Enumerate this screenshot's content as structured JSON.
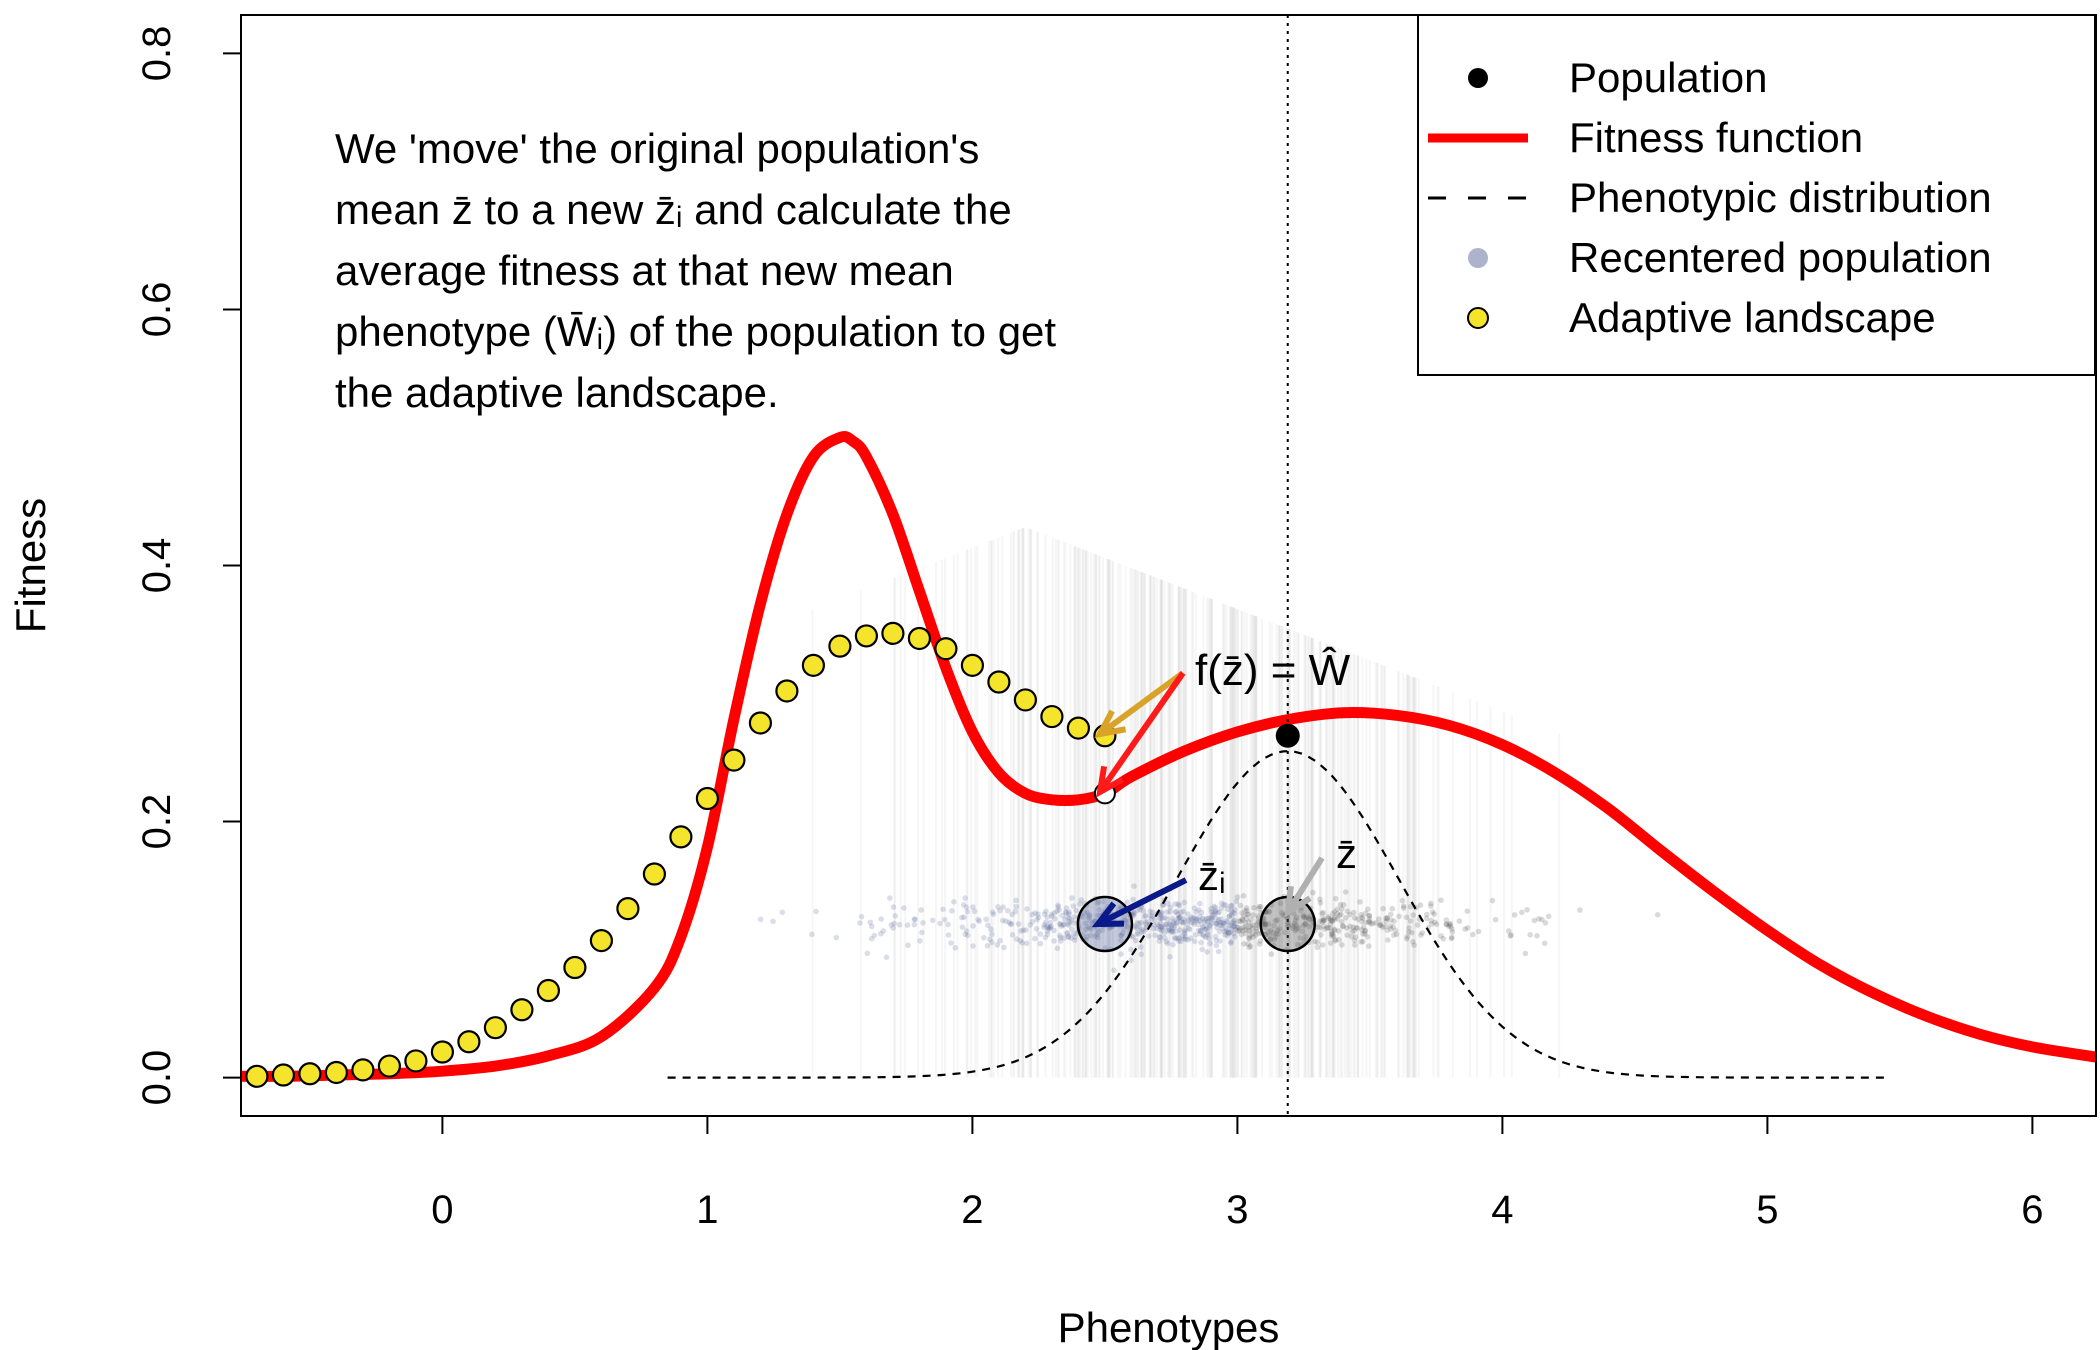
{
  "chart_data": {
    "type": "line",
    "xlabel": "Phenotypes",
    "ylabel": "Fitness",
    "xlim": [
      -0.76,
      6.24
    ],
    "ylim": [
      -0.03,
      0.83
    ],
    "x_ticks": [
      0,
      1,
      2,
      3,
      4,
      5,
      6
    ],
    "y_ticks": [
      0.0,
      0.2,
      0.4,
      0.6,
      0.8
    ],
    "x_tick_labels": [
      "0",
      "1",
      "2",
      "3",
      "4",
      "5",
      "6"
    ],
    "y_tick_labels": [
      "0.0",
      "0.2",
      "0.4",
      "0.6",
      "0.8"
    ],
    "grid": false,
    "legend_position": "top-right",
    "legend": [
      {
        "label": "Population",
        "symbol": "point",
        "color": "#000000"
      },
      {
        "label": "Fitness function",
        "symbol": "line",
        "color": "#ff0000"
      },
      {
        "label": "Phenotypic distribution",
        "symbol": "dashed-line",
        "color": "#000000"
      },
      {
        "label": "Recentered population",
        "symbol": "point",
        "color": "#8a93b6"
      },
      {
        "label": "Adaptive landscape",
        "symbol": "point",
        "color": "#f5e42c"
      }
    ],
    "annotation_lines": [
      "We 'move' the original population's",
      "mean z̄ to a new z̄ᵢ and calculate the",
      "average fitness at that new mean",
      "phenotype (W̄ᵢ) of the population to get",
      "the adaptive landscape."
    ],
    "fitness_function": {
      "name": "Fitness function",
      "color": "#ff0000",
      "x": [
        -0.76,
        -0.6,
        -0.4,
        -0.2,
        0.0,
        0.2,
        0.4,
        0.6,
        0.8,
        0.9,
        1.0,
        1.1,
        1.2,
        1.3,
        1.4,
        1.5,
        1.55,
        1.6,
        1.7,
        1.8,
        1.9,
        2.0,
        2.1,
        2.2,
        2.3,
        2.4,
        2.5,
        2.6,
        2.8,
        3.0,
        3.2,
        3.4,
        3.6,
        3.8,
        4.0,
        4.2,
        4.4,
        4.6,
        4.8,
        5.0,
        5.2,
        5.4,
        5.6,
        5.8,
        6.0,
        6.24
      ],
      "y": [
        0.001,
        0.001,
        0.002,
        0.003,
        0.005,
        0.009,
        0.017,
        0.032,
        0.07,
        0.11,
        0.18,
        0.28,
        0.37,
        0.44,
        0.485,
        0.5,
        0.497,
        0.485,
        0.44,
        0.38,
        0.32,
        0.27,
        0.238,
        0.222,
        0.217,
        0.217,
        0.222,
        0.235,
        0.255,
        0.27,
        0.28,
        0.285,
        0.283,
        0.275,
        0.26,
        0.238,
        0.21,
        0.177,
        0.145,
        0.115,
        0.088,
        0.066,
        0.048,
        0.034,
        0.024,
        0.016
      ]
    },
    "adaptive_landscape": {
      "name": "Adaptive landscape",
      "color": "#f5e42c",
      "x": [
        -0.7,
        -0.6,
        -0.5,
        -0.4,
        -0.3,
        -0.2,
        -0.1,
        0.0,
        0.1,
        0.2,
        0.3,
        0.4,
        0.5,
        0.6,
        0.7,
        0.8,
        0.9,
        1.0,
        1.1,
        1.2,
        1.3,
        1.4,
        1.5,
        1.6,
        1.7,
        1.8,
        1.9,
        2.0,
        2.1,
        2.2,
        2.3,
        2.4,
        2.5
      ],
      "y": [
        0.001,
        0.002,
        0.003,
        0.004,
        0.006,
        0.009,
        0.013,
        0.02,
        0.028,
        0.039,
        0.053,
        0.068,
        0.086,
        0.107,
        0.132,
        0.159,
        0.188,
        0.218,
        0.248,
        0.277,
        0.302,
        0.322,
        0.337,
        0.345,
        0.347,
        0.343,
        0.335,
        0.322,
        0.309,
        0.295,
        0.282,
        0.273,
        0.267
      ]
    },
    "phenotypic_distribution": {
      "name": "Phenotypic distribution",
      "mean": 3.19,
      "sd": 0.42,
      "peak": 0.255,
      "x_range": [
        0.85,
        5.45
      ]
    },
    "population_mean": {
      "x": 3.19,
      "y": 0.267
    },
    "population_mean_line_x": 3.19,
    "recentered_mean": {
      "x": 2.5,
      "y": 0.222
    },
    "adaptive_point": {
      "x": 2.5,
      "y": 0.267
    },
    "population_cloud": {
      "y": 0.12,
      "x_min": 1.0,
      "x_max": 4.8
    },
    "labels": {
      "W_hat": "Ŵ",
      "f_label": "f(z̄) = Ŵ",
      "Wi_label": "W̄ᵢ",
      "zbar": "z̄",
      "zbar_i": "z̄ᵢ"
    }
  }
}
